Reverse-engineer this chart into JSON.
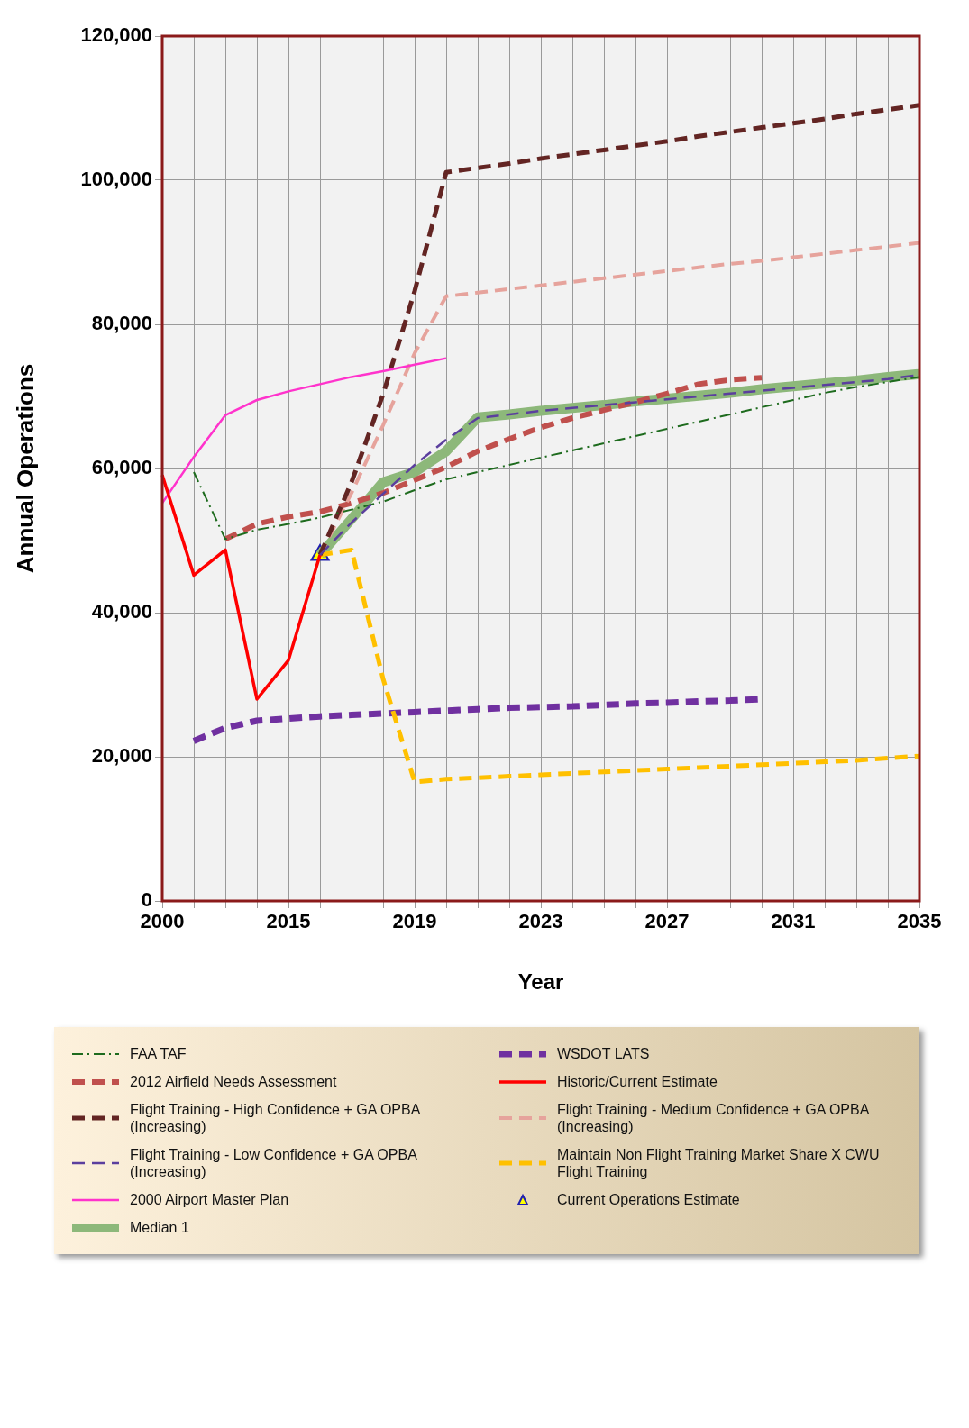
{
  "chart_data": {
    "type": "line",
    "xlabel": "Year",
    "ylabel": "Annual Operations",
    "categories": [
      "2000",
      null,
      null,
      null,
      "2015",
      null,
      null,
      null,
      "2019",
      null,
      null,
      null,
      "2023",
      null,
      null,
      null,
      "2027",
      null,
      null,
      null,
      "2031",
      null,
      null,
      null,
      "2035"
    ],
    "ylim": [
      0,
      120000
    ],
    "yticks": [
      0,
      {
        "value": 20000,
        "label": "20,000"
      },
      {
        "value": 40000,
        "label": "40,000"
      },
      {
        "value": 60000,
        "label": "60,000"
      },
      {
        "value": 80000,
        "label": "80,000"
      },
      {
        "value": 100000,
        "label": "100,000"
      },
      {
        "value": 120000,
        "label": "120,000"
      }
    ],
    "grid": true,
    "legend": "bottom",
    "series": [
      {
        "name": "FAA TAF",
        "color": "#1e6b1e",
        "line_style": "dashdot",
        "values": [
          null,
          59500,
          50200,
          51500,
          52300,
          53200,
          54300,
          55400,
          57000,
          58500,
          59500,
          60500,
          61500,
          62500,
          63500,
          64500,
          65500,
          66500,
          67500,
          68500,
          69500,
          70500,
          71300,
          72000,
          72700
        ]
      },
      {
        "name": "WSDOT LATS",
        "color": "#7030a0",
        "line_style": "dashed",
        "values": [
          null,
          22200,
          24000,
          25000,
          25300,
          25600,
          25800,
          26000,
          26200,
          26400,
          26600,
          26800,
          26900,
          27000,
          27200,
          27400,
          27500,
          27700,
          27800,
          28000,
          null,
          null,
          null,
          null,
          null
        ]
      },
      {
        "name": "2012 Airfield Needs Assessment",
        "color": "#c0504d",
        "line_style": "dashed",
        "values": [
          null,
          null,
          50200,
          52300,
          53300,
          54000,
          55200,
          56600,
          58400,
          60200,
          62400,
          64100,
          65700,
          67000,
          68100,
          69200,
          70400,
          71700,
          72300,
          72600,
          null,
          null,
          null,
          null,
          null
        ]
      },
      {
        "name": "Historic/Current Estimate",
        "color": "#ff0000",
        "line_style": "solid",
        "values": [
          59100,
          45200,
          48700,
          28000,
          33400,
          48000,
          null,
          null,
          null,
          null,
          null,
          null,
          null,
          null,
          null,
          null,
          null,
          null,
          null,
          null,
          null,
          null,
          null,
          null,
          null
        ]
      },
      {
        "name": "Flight Training - High Confidence + GA OPBA (Increasing)",
        "color": "#632523",
        "line_style": "dashed",
        "values": [
          null,
          null,
          null,
          null,
          null,
          48000,
          58100,
          70300,
          84600,
          101100,
          101700,
          102300,
          103000,
          103600,
          104200,
          104800,
          105400,
          106100,
          106700,
          107300,
          107900,
          108500,
          109200,
          109800,
          110400
        ]
      },
      {
        "name": "Flight Training - Medium Confidence + GA OPBA (Increasing)",
        "color": "#e6a39c",
        "line_style": "dashed",
        "values": [
          null,
          null,
          null,
          null,
          null,
          48000,
          56600,
          66000,
          76000,
          83900,
          84400,
          84900,
          85400,
          85900,
          86400,
          86900,
          87400,
          87900,
          88400,
          88800,
          89300,
          89800,
          90300,
          90800,
          91300
        ]
      },
      {
        "name": "Flight Training - Low Confidence + GA OPBA (Increasing)",
        "color": "#5b3f9e",
        "line_style": "dashed",
        "values": [
          null,
          null,
          null,
          null,
          null,
          48000,
          52500,
          56500,
          60500,
          64000,
          67000,
          67500,
          68000,
          68400,
          68800,
          69200,
          69600,
          70000,
          70400,
          70800,
          71200,
          71600,
          72000,
          72400,
          73000
        ]
      },
      {
        "name": "Maintain Non Flight Training Market Share X CWU Flight Training",
        "color": "#ffc000",
        "line_style": "dashed",
        "values": [
          null,
          null,
          null,
          null,
          null,
          48000,
          48700,
          30800,
          16500,
          16900,
          17100,
          17300,
          17500,
          17700,
          17900,
          18100,
          18300,
          18500,
          18700,
          18900,
          19100,
          19300,
          19500,
          19800,
          20100
        ]
      },
      {
        "name": "2000 Airport Master Plan",
        "color": "#ff33cc",
        "line_style": "solid",
        "values": [
          55200,
          61600,
          67400,
          69500,
          70700,
          71700,
          72700,
          73500,
          74400,
          75300,
          null,
          null,
          null,
          null,
          null,
          null,
          null,
          null,
          null,
          null,
          null,
          null,
          null,
          null,
          null
        ]
      },
      {
        "name": "Current Operations Estimate",
        "type": "scatter",
        "marker": "triangle",
        "color": "#ffff00",
        "values": [
          null,
          null,
          null,
          null,
          null,
          48000,
          null,
          null,
          null,
          null,
          null,
          null,
          null,
          null,
          null,
          null,
          null,
          null,
          null,
          null,
          null,
          null,
          null,
          null,
          null
        ]
      },
      {
        "name": "Median 1",
        "color": "#8db87a",
        "line_style": "solid",
        "values": [
          null,
          null,
          null,
          null,
          null,
          48000,
          53000,
          58100,
          59500,
          62400,
          67100,
          67500,
          68000,
          68400,
          68800,
          69300,
          69700,
          70100,
          70500,
          71000,
          71400,
          71800,
          72200,
          72700,
          73100
        ]
      }
    ]
  }
}
